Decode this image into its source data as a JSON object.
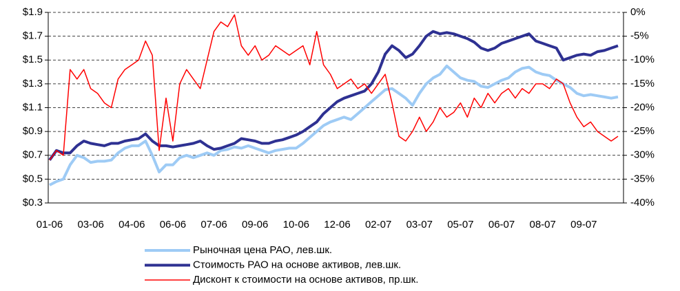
{
  "chart_data": {
    "type": "line",
    "categories": [
      "01-06",
      null,
      null,
      null,
      null,
      null,
      "03-06",
      null,
      null,
      null,
      null,
      null,
      "04-06",
      null,
      null,
      null,
      null,
      null,
      "06-06",
      null,
      null,
      null,
      null,
      null,
      "07-06",
      null,
      null,
      null,
      null,
      null,
      "09-06",
      null,
      null,
      null,
      null,
      null,
      "10-06",
      null,
      null,
      null,
      null,
      null,
      "12-06",
      null,
      null,
      null,
      null,
      null,
      "02-07",
      null,
      null,
      null,
      null,
      null,
      "03-07",
      null,
      null,
      null,
      null,
      null,
      "05-07",
      null,
      null,
      null,
      null,
      null,
      "06-07",
      null,
      null,
      null,
      null,
      null,
      "08-07",
      null,
      null,
      null,
      null,
      null,
      "09-07",
      null,
      null,
      null,
      null,
      null
    ],
    "series": [
      {
        "name": "Рыночная цена РАО, лев.шк.",
        "color": "#9ecbf5",
        "width": 4,
        "values": [
          0.45,
          0.48,
          0.5,
          0.62,
          0.7,
          0.68,
          0.64,
          0.65,
          0.65,
          0.66,
          0.72,
          0.76,
          0.78,
          0.78,
          0.82,
          0.7,
          0.56,
          0.62,
          0.62,
          0.68,
          0.7,
          0.68,
          0.7,
          0.72,
          0.7,
          0.74,
          0.75,
          0.77,
          0.76,
          0.78,
          0.76,
          0.74,
          0.72,
          0.74,
          0.75,
          0.76,
          0.76,
          0.8,
          0.85,
          0.9,
          0.95,
          0.98,
          1.0,
          1.02,
          1.0,
          1.05,
          1.1,
          1.15,
          1.2,
          1.25,
          1.26,
          1.22,
          1.18,
          1.12,
          1.22,
          1.3,
          1.35,
          1.38,
          1.45,
          1.4,
          1.35,
          1.33,
          1.32,
          1.28,
          1.27,
          1.3,
          1.33,
          1.35,
          1.4,
          1.43,
          1.44,
          1.4,
          1.38,
          1.37,
          1.33,
          1.3,
          1.27,
          1.22,
          1.2,
          1.21,
          1.2,
          1.19,
          1.18,
          1.19
        ]
      },
      {
        "name": "Стоимость РАО на основе активов, лев.шк.",
        "color": "#2e3192",
        "width": 4,
        "values": [
          0.66,
          0.74,
          0.72,
          0.72,
          0.78,
          0.82,
          0.8,
          0.79,
          0.78,
          0.8,
          0.8,
          0.82,
          0.83,
          0.84,
          0.88,
          0.82,
          0.78,
          0.78,
          0.77,
          0.78,
          0.79,
          0.8,
          0.82,
          0.78,
          0.75,
          0.76,
          0.78,
          0.8,
          0.84,
          0.83,
          0.82,
          0.8,
          0.8,
          0.82,
          0.83,
          0.85,
          0.87,
          0.9,
          0.94,
          0.98,
          1.05,
          1.1,
          1.15,
          1.18,
          1.2,
          1.22,
          1.24,
          1.3,
          1.4,
          1.55,
          1.62,
          1.58,
          1.52,
          1.55,
          1.62,
          1.7,
          1.74,
          1.72,
          1.73,
          1.72,
          1.7,
          1.68,
          1.65,
          1.6,
          1.58,
          1.6,
          1.64,
          1.66,
          1.68,
          1.7,
          1.72,
          1.66,
          1.64,
          1.62,
          1.6,
          1.5,
          1.52,
          1.54,
          1.55,
          1.54,
          1.57,
          1.58,
          1.6,
          1.62
        ]
      },
      {
        "name": "Дисконт к стоимости на основе активов, пр.шк.",
        "color": "#ff0000",
        "width": 1.5,
        "axis": "y2",
        "values": [
          -31,
          -29,
          -30,
          -12,
          -14,
          -12,
          -16,
          -17,
          -19,
          -20,
          -14,
          -12,
          -11,
          -10,
          -6,
          -9,
          -29,
          -18,
          -27,
          -15,
          -12,
          -14,
          -16,
          -10,
          -4,
          -2,
          -3,
          -0.5,
          -7,
          -9,
          -7,
          -10,
          -9,
          -7,
          -8,
          -9,
          -8,
          -7,
          -11,
          -4,
          -11,
          -13,
          -16,
          -15,
          -14,
          -16,
          -15,
          -17,
          -15,
          -13,
          -19,
          -26,
          -27,
          -25,
          -22,
          -25,
          -23,
          -20,
          -22,
          -21,
          -19,
          -22,
          -18,
          -20,
          -17,
          -19,
          -17,
          -16,
          -18,
          -16,
          -17,
          -15,
          -15,
          -16,
          -14,
          -15,
          -19,
          -22,
          -24,
          -23,
          -25,
          -26,
          -27,
          -26
        ]
      }
    ],
    "ylim": [
      0.3,
      1.9
    ],
    "yticks": [
      {
        "value": 0.3,
        "label": "$0.3"
      },
      {
        "value": 0.5,
        "label": "$0.5"
      },
      {
        "value": 0.7,
        "label": "$0.7"
      },
      {
        "value": 0.9,
        "label": "$0.9"
      },
      {
        "value": 1.1,
        "label": "$1.1"
      },
      {
        "value": 1.3,
        "label": "$1.3"
      },
      {
        "value": 1.5,
        "label": "$1.5"
      },
      {
        "value": 1.7,
        "label": "$1.7"
      },
      {
        "value": 1.9,
        "label": "$1.9"
      }
    ],
    "y2lim": [
      -40,
      0
    ],
    "y2ticks": [
      {
        "value": -40,
        "label": "-40%"
      },
      {
        "value": -35,
        "label": "-35%"
      },
      {
        "value": -30,
        "label": "-30%"
      },
      {
        "value": -25,
        "label": "-25%"
      },
      {
        "value": -20,
        "label": "-20%"
      },
      {
        "value": -15,
        "label": "-15%"
      },
      {
        "value": -10,
        "label": "-10%"
      },
      {
        "value": -5,
        "label": "-5%"
      },
      {
        "value": 0,
        "label": "0%"
      }
    ],
    "grid": true,
    "legend": "bottom"
  }
}
